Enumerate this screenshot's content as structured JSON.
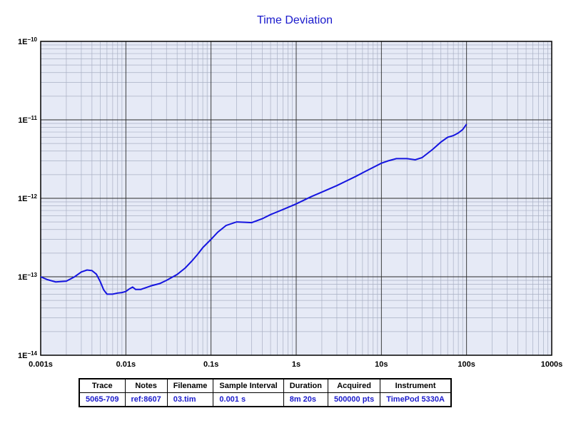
{
  "chart_data": {
    "type": "line",
    "title": "Time Deviation",
    "xlabel": "",
    "ylabel": "",
    "x_scale": "log",
    "y_scale": "log",
    "xlim": [
      0.001,
      1000
    ],
    "ylim": [
      1e-14,
      1e-10
    ],
    "grid": true,
    "x_ticks": [
      "0.001s",
      "0.01s",
      "0.1s",
      "1s",
      "10s",
      "100s",
      "1000s"
    ],
    "y_ticks": [
      {
        "mantissa": "1E",
        "exp": "−10"
      },
      {
        "mantissa": "1E",
        "exp": "−11"
      },
      {
        "mantissa": "1E",
        "exp": "−12"
      },
      {
        "mantissa": "1E",
        "exp": "−13"
      },
      {
        "mantissa": "1E",
        "exp": "−14"
      }
    ],
    "line_color": "#1515e0",
    "plot_bg": "#e6eaf6",
    "series": [
      {
        "x": [
          0.001,
          0.0012,
          0.0015,
          0.002,
          0.0025,
          0.003,
          0.0035,
          0.004,
          0.0045,
          0.005,
          0.0055,
          0.006,
          0.007,
          0.008,
          0.009,
          0.01,
          0.011,
          0.012,
          0.013,
          0.015,
          0.018,
          0.02,
          0.025,
          0.03,
          0.04,
          0.05,
          0.06,
          0.07,
          0.08,
          0.1,
          0.12,
          0.15,
          0.2,
          0.25,
          0.3,
          0.4,
          0.5,
          0.7,
          1,
          1.5,
          2,
          3,
          5,
          7,
          10,
          12,
          15,
          20,
          25,
          30,
          40,
          50,
          60,
          70,
          80,
          90,
          100
        ],
        "y": [
          1e-13,
          9.2e-14,
          8.6e-14,
          8.8e-14,
          1e-13,
          1.15e-13,
          1.22e-13,
          1.2e-13,
          1.08e-13,
          8.7e-14,
          6.8e-14,
          6e-14,
          6e-14,
          6.2e-14,
          6.3e-14,
          6.5e-14,
          7e-14,
          7.4e-14,
          6.9e-14,
          6.9e-14,
          7.4e-14,
          7.7e-14,
          8.2e-14,
          9e-14,
          1.07e-13,
          1.3e-13,
          1.6e-13,
          1.95e-13,
          2.35e-13,
          3e-13,
          3.7e-13,
          4.5e-13,
          5e-13,
          4.95e-13,
          4.9e-13,
          5.5e-13,
          6.2e-13,
          7.2e-13,
          8.5e-13,
          1.05e-12,
          1.2e-12,
          1.45e-12,
          1.9e-12,
          2.3e-12,
          2.8e-12,
          3e-12,
          3.2e-12,
          3.2e-12,
          3.1e-12,
          3.3e-12,
          4.2e-12,
          5.2e-12,
          6e-12,
          6.3e-12,
          6.8e-12,
          7.5e-12,
          8.8e-12
        ]
      }
    ]
  },
  "legend_table": {
    "headers": [
      "Trace",
      "Notes",
      "Filename",
      "Sample Interval",
      "Duration",
      "Acquired",
      "Instrument"
    ],
    "row": [
      "5065-709",
      "ref:8607",
      "03.tim",
      "0.001 s",
      "8m 20s",
      "500000 pts",
      "TimePod 5330A"
    ]
  }
}
